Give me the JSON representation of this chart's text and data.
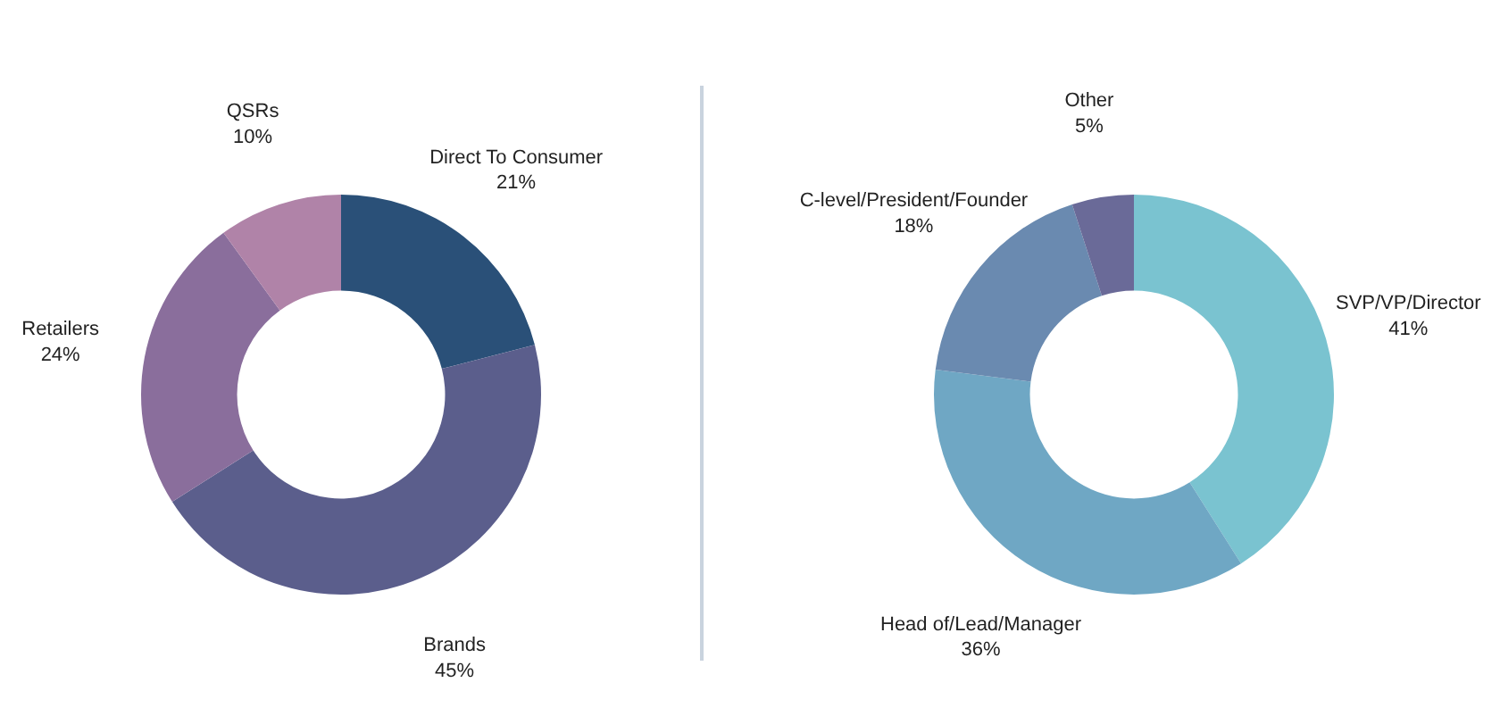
{
  "chart_data": [
    {
      "type": "donut",
      "categories": [
        "Direct To Consumer",
        "Brands",
        "Retailers",
        "QSRs"
      ],
      "values": [
        21,
        45,
        24,
        10
      ],
      "value_labels": [
        "21%",
        "45%",
        "24%",
        "10%"
      ],
      "colors": [
        "#2a5078",
        "#5b5e8c",
        "#8a6e9c",
        "#b083a8"
      ]
    },
    {
      "type": "donut",
      "categories": [
        "SVP/VP/Director",
        "Head of/Lead/Manager",
        "C-level/President/Founder",
        "Other"
      ],
      "values": [
        41,
        36,
        18,
        5
      ],
      "value_labels": [
        "41%",
        "36%",
        "18%",
        "5%"
      ],
      "colors": [
        "#7ac3d0",
        "#6fa7c4",
        "#6a8ab0",
        "#6a6a98"
      ]
    }
  ]
}
